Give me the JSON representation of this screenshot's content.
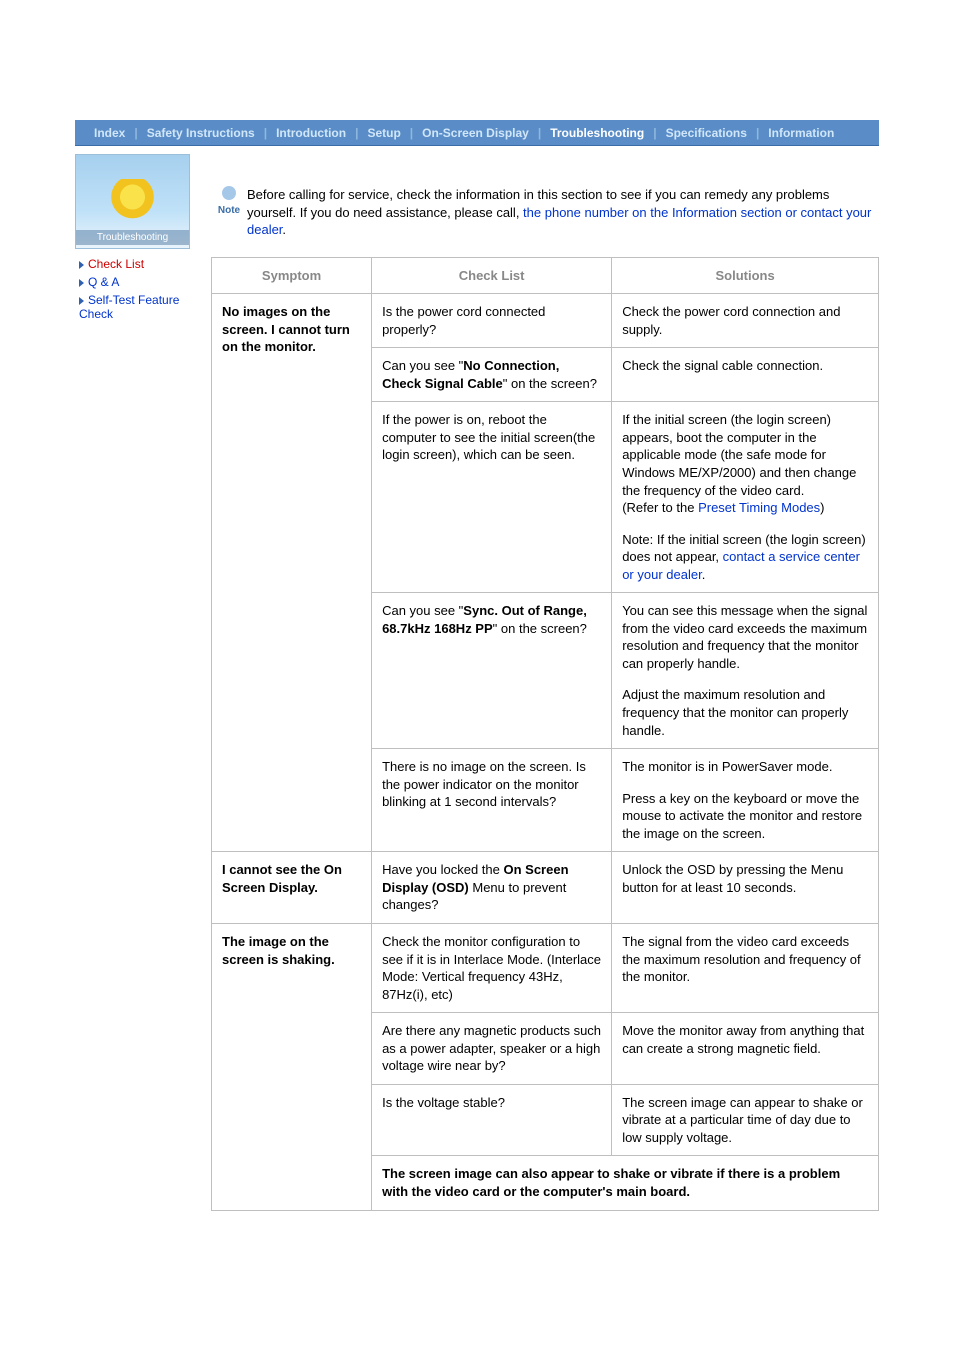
{
  "nav": {
    "items": [
      "Index",
      "Safety Instructions",
      "Introduction",
      "Setup",
      "On-Screen Display",
      "Troubleshooting",
      "Specifications",
      "Information"
    ],
    "active": 5,
    "bg_color": "#5a8dc7",
    "active_color": "#ffffff",
    "text_color": "#d0e6f9"
  },
  "thumb": {
    "label": "Troubleshooting"
  },
  "sidebar": {
    "links": [
      {
        "label": "Check List",
        "current": true
      },
      {
        "label": "Q & A",
        "current": false
      },
      {
        "label": "Self-Test Feature Check",
        "current": false
      }
    ]
  },
  "note": {
    "icon_label": "Note",
    "text_before": "Before calling for service, check the information in this section to see if you can remedy any problems yourself. If you do need assistance, please call, ",
    "link1": "the phone number on the Information section or contact your dealer",
    "text_after": "."
  },
  "table": {
    "headers": {
      "symptom": "Symptom",
      "checklist": "Check List",
      "solutions": "Solutions"
    },
    "rows": [
      {
        "symptom": "No images on the screen. I cannot turn on the monitor.",
        "cells": [
          {
            "check": [
              {
                "t": "Is the power cord connected properly?"
              }
            ],
            "sol": [
              {
                "t": "Check the power cord connection and supply."
              }
            ]
          },
          {
            "check": [
              {
                "t": "Can you see \""
              },
              {
                "b": "No Connection, Check Signal Cable"
              },
              {
                "t": "\" on the screen?"
              }
            ],
            "sol": [
              {
                "t": "Check the signal cable connection."
              }
            ]
          },
          {
            "check": [
              {
                "t": "If the power is on, reboot the computer to see the initial screen(the login screen), which can be seen."
              }
            ],
            "sol_multi": [
              [
                {
                  "t": "If the initial screen (the login screen) appears, boot the computer in the applicable mode (the safe mode for Windows ME/XP/2000) and then change the frequency of the video card."
                },
                {
                  "br": true
                },
                {
                  "t": "(Refer to the "
                },
                {
                  "a": "Preset Timing Modes"
                },
                {
                  "t": ")"
                }
              ],
              [
                {
                  "t": "Note: If the initial screen (the login screen) does not appear, "
                },
                {
                  "a": "contact a service center or your dealer"
                },
                {
                  "t": "."
                }
              ]
            ]
          },
          {
            "check": [
              {
                "t": "Can you see \""
              },
              {
                "b": "Sync. Out of Range, 68.7kHz 168Hz PP"
              },
              {
                "t": "\" on the screen?"
              }
            ],
            "sol_multi": [
              [
                {
                  "t": "You can see this message when the signal from the video card exceeds the maximum resolution and frequency that the monitor can properly handle."
                }
              ],
              [
                {
                  "t": "Adjust the maximum resolution and frequency that the monitor can properly handle."
                }
              ]
            ]
          },
          {
            "check": [
              {
                "t": "There is no image on the screen. Is the power indicator on the monitor blinking at 1 second intervals?"
              }
            ],
            "sol_multi": [
              [
                {
                  "t": "The monitor is in PowerSaver mode."
                }
              ],
              [
                {
                  "t": "Press a key on the keyboard or move the mouse to activate the monitor and restore the image on the screen."
                }
              ]
            ]
          }
        ]
      },
      {
        "symptom": "I cannot see the On Screen Display.",
        "cells": [
          {
            "check": [
              {
                "t": "Have you locked the "
              },
              {
                "b": "On Screen Display (OSD)"
              },
              {
                "t": " Menu to prevent changes?"
              }
            ],
            "sol": [
              {
                "t": "Unlock the OSD by pressing the Menu button for at least 10 seconds."
              }
            ]
          }
        ]
      },
      {
        "symptom": "The image on the screen is shaking.",
        "cells": [
          {
            "check": [
              {
                "t": "Check the monitor configuration to see if it is in Interlace Mode. (Interlace Mode: Vertical frequency 43Hz, 87Hz(i), etc)"
              }
            ],
            "sol": [
              {
                "t": "The signal from the video card exceeds the maximum resolution and frequency of the monitor."
              }
            ]
          },
          {
            "check": [
              {
                "t": "Are there any magnetic products such as a power adapter, speaker or a high voltage wire near by?"
              }
            ],
            "sol": [
              {
                "t": "Move the monitor away from anything that can create a strong magnetic field."
              }
            ]
          },
          {
            "check": [
              {
                "t": "Is the voltage stable?"
              }
            ],
            "sol": [
              {
                "t": "The screen image can appear to shake or vibrate at a particular time of day due to low supply voltage."
              }
            ]
          }
        ],
        "footer": "The screen image can also appear to shake or vibrate if there is a problem with the video card or the computer's main board."
      }
    ]
  },
  "colors": {
    "link": "#0033cc",
    "current": "#cc0000",
    "border": "#bfbfbf",
    "header_text": "#888888"
  }
}
